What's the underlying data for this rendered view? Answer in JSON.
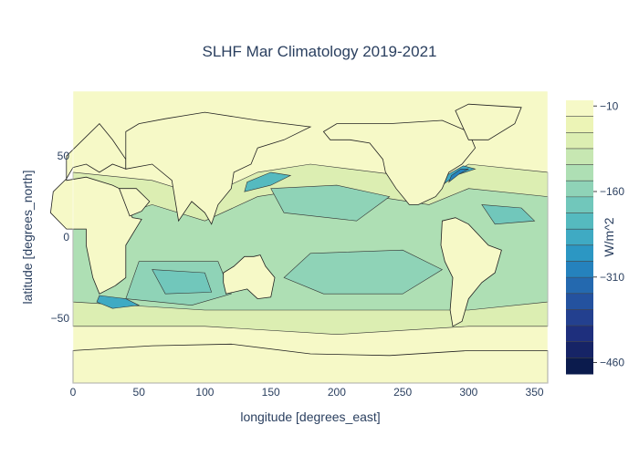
{
  "chart_data": {
    "type": "heatmap",
    "title": "SLHF Mar Climatology 2019-2021",
    "xlabel": "longitude [degrees_east]",
    "ylabel": "latitude [degrees_north]",
    "xlim": [
      0,
      360
    ],
    "ylim": [
      -90,
      90
    ],
    "x_ticks": [
      0,
      50,
      100,
      150,
      200,
      250,
      300,
      350
    ],
    "y_ticks": [
      -50,
      0,
      50
    ],
    "colorbar": {
      "title": "W/m^2",
      "range": [
        -460,
        0
      ],
      "ticks": [
        -10,
        -160,
        -310,
        -460
      ],
      "levels": [
        0,
        -30,
        -60,
        -90,
        -120,
        -150,
        -180,
        -210,
        -240,
        -270,
        -300,
        -330,
        -360,
        -390,
        -420,
        -450,
        -480
      ],
      "colors": [
        "#f6f9c7",
        "#ecf4b6",
        "#dceeb2",
        "#c7e7b2",
        "#aedfb4",
        "#8fd3b7",
        "#71c7bb",
        "#55babf",
        "#3faac3",
        "#2c97c3",
        "#2582bd",
        "#2469af",
        "#24529f",
        "#23408f",
        "#1e2f7d",
        "#162466",
        "#0b1b4d"
      ]
    },
    "description": "Global map of March surface latent heat flux (SLHF) climatology; strongest negative values over Gulf Stream, Kuroshio and Agulhas currents; moderate values over subtropical oceans; near zero over land and polar regions."
  }
}
